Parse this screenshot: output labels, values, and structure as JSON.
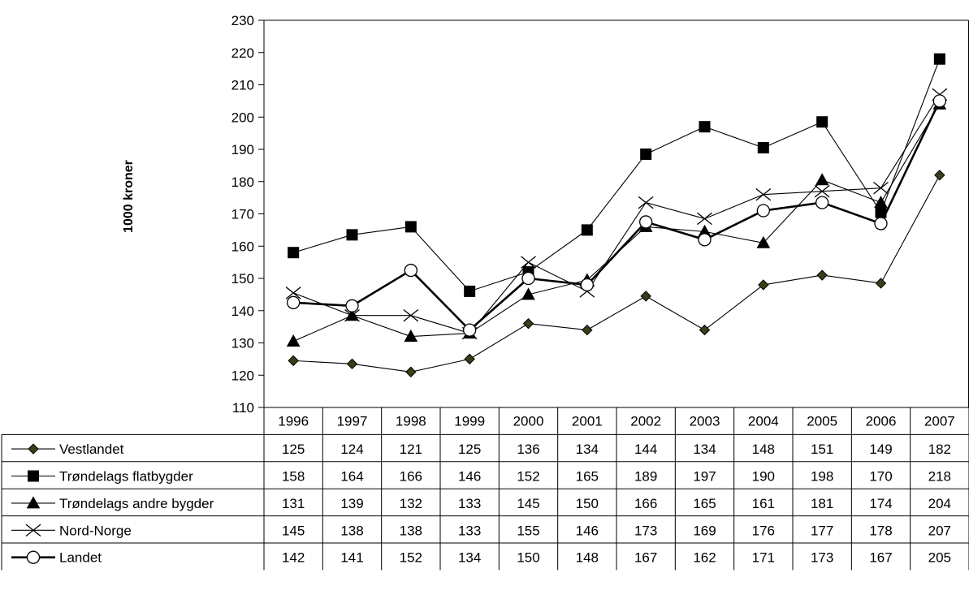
{
  "chart_data": {
    "type": "line",
    "title": "",
    "ylabel": "1000 kroner",
    "xlabel": "",
    "ylim": [
      110,
      230
    ],
    "yticks": [
      110,
      120,
      130,
      140,
      150,
      160,
      170,
      180,
      190,
      200,
      210,
      220,
      230
    ],
    "grid": false,
    "legend": "data-table-below",
    "categories": [
      "1996",
      "1997",
      "1998",
      "1999",
      "2000",
      "2001",
      "2002",
      "2003",
      "2004",
      "2005",
      "2006",
      "2007"
    ],
    "series": [
      {
        "name": "Vestlandet",
        "marker": "diamond",
        "marker_fill": "#3d3d1a",
        "line_weight": "thin",
        "values": [
          124.5,
          123.5,
          121,
          125,
          136,
          134,
          144.5,
          134,
          148,
          151,
          148.5,
          182
        ],
        "table_values": [
          "125",
          "124",
          "121",
          "125",
          "136",
          "134",
          "144",
          "134",
          "148",
          "151",
          "149",
          "182"
        ]
      },
      {
        "name": "Trøndelags  flatbygder",
        "marker": "square",
        "marker_fill": "#000000",
        "line_weight": "thin",
        "values": [
          158,
          163.5,
          166,
          146,
          152,
          165,
          188.5,
          197,
          190.5,
          198.5,
          170.5,
          218
        ],
        "table_values": [
          "158",
          "164",
          "166",
          "146",
          "152",
          "165",
          "189",
          "197",
          "190",
          "198",
          "170",
          "218"
        ]
      },
      {
        "name": "Trøndelags andre bygder",
        "marker": "triangle",
        "marker_fill": "#000000",
        "line_weight": "thin",
        "values": [
          130.5,
          138.5,
          132,
          133,
          145,
          149.5,
          166,
          164.5,
          161,
          180.5,
          173.5,
          204
        ],
        "table_values": [
          "131",
          "139",
          "132",
          "133",
          "145",
          "150",
          "166",
          "165",
          "161",
          "181",
          "174",
          "204"
        ]
      },
      {
        "name": "Nord-Norge",
        "marker": "x",
        "marker_fill": "#000000",
        "line_weight": "thin",
        "values": [
          145.5,
          138.5,
          138.5,
          133,
          155,
          146,
          173.5,
          168.5,
          176,
          177,
          178,
          207
        ],
        "table_values": [
          "145",
          "138",
          "138",
          "133",
          "155",
          "146",
          "173",
          "169",
          "176",
          "177",
          "178",
          "207"
        ]
      },
      {
        "name": "Landet",
        "marker": "circle-open",
        "marker_fill": "#ffffff",
        "line_weight": "thick",
        "values": [
          142.5,
          141.5,
          152.5,
          134,
          150,
          148,
          167.5,
          162,
          171,
          173.5,
          167,
          205
        ],
        "table_values": [
          "142",
          "141",
          "152",
          "134",
          "150",
          "148",
          "167",
          "162",
          "171",
          "173",
          "167",
          "205"
        ]
      }
    ]
  }
}
